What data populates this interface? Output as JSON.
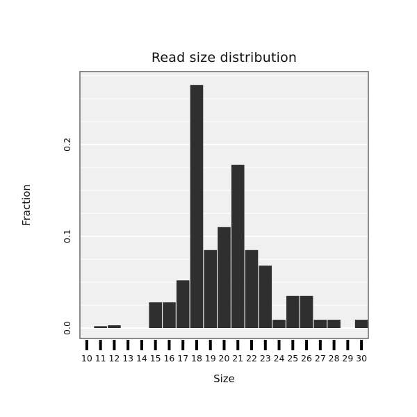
{
  "chart_data": {
    "type": "bar",
    "title": "Read size distribution",
    "xlabel": "Size",
    "ylabel": "Fraction",
    "categories": [
      10,
      11,
      12,
      13,
      14,
      15,
      16,
      17,
      18,
      19,
      20,
      21,
      22,
      23,
      24,
      25,
      26,
      27,
      28,
      29,
      30
    ],
    "values": [
      0,
      0.002,
      0.003,
      0,
      0,
      0.028,
      0.028,
      0.052,
      0.265,
      0.085,
      0.11,
      0.178,
      0.085,
      0.068,
      0.009,
      0.035,
      0.035,
      0.009,
      0.009,
      0,
      0.009
    ],
    "yticks": [
      0.0,
      0.1,
      0.2
    ],
    "ytick_labels": [
      "0.0",
      "0.1",
      "0.2"
    ],
    "ylim": [
      0,
      0.28
    ],
    "grid": true,
    "legend": "none",
    "colors": {
      "bar": "#2f2f2f",
      "panel_bg": "#f0f0f0",
      "grid": "#ffffff",
      "panel_border": "#808080",
      "axis_tick": "#000000",
      "text": "#111111"
    }
  }
}
